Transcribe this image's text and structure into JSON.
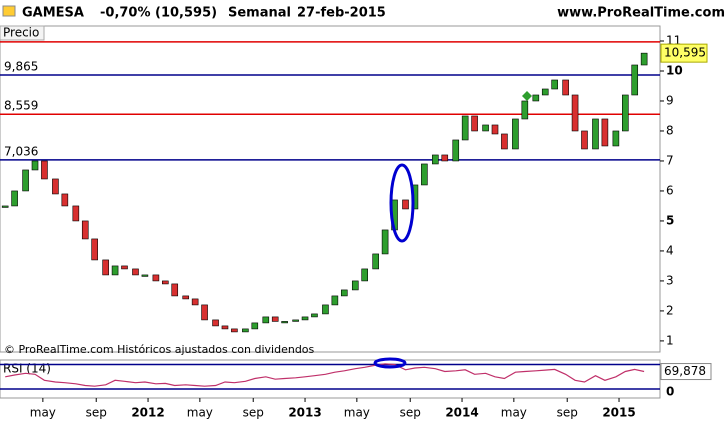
{
  "chart_data": {
    "type": "stock",
    "symbol": "GAMESA",
    "change": "-0,70% (10,595)",
    "period": "Semanal",
    "date": "27-feb-2015",
    "site": "www.ProRealTime.com",
    "panel_label": "Precio",
    "footnote": "© ProRealTime.com Históricos ajustados con dividendos",
    "x": [
      2011.09,
      2011.15,
      2011.22,
      2011.28,
      2011.34,
      2011.41,
      2011.47,
      2011.54,
      2011.6,
      2011.66,
      2011.73,
      2011.79,
      2011.85,
      2011.92,
      2011.98,
      2012.05,
      2012.11,
      2012.17,
      2012.24,
      2012.3,
      2012.36,
      2012.43,
      2012.49,
      2012.55,
      2012.62,
      2012.68,
      2012.75,
      2012.81,
      2012.87,
      2012.94,
      2013.0,
      2013.06,
      2013.13,
      2013.19,
      2013.25,
      2013.32,
      2013.38,
      2013.45,
      2013.51,
      2013.57,
      2013.64,
      2013.7,
      2013.76,
      2013.83,
      2013.89,
      2013.96,
      2014.02,
      2014.08,
      2014.15,
      2014.21,
      2014.27,
      2014.34,
      2014.4,
      2014.47,
      2014.53,
      2014.59,
      2014.66,
      2014.72,
      2014.78,
      2014.85,
      2014.91,
      2014.98,
      2015.04,
      2015.1,
      2015.16
    ],
    "series": [
      {
        "name": "Precio",
        "up_color": "#2e9e2e",
        "down_color": "#d83030",
        "values": [
          5.5,
          6.0,
          6.7,
          7.0,
          6.4,
          5.9,
          5.5,
          5.0,
          4.4,
          3.7,
          3.2,
          3.5,
          3.4,
          3.2,
          3.2,
          3.0,
          2.9,
          2.5,
          2.4,
          2.2,
          1.7,
          1.5,
          1.4,
          1.3,
          1.4,
          1.6,
          1.8,
          1.65,
          1.65,
          1.7,
          1.8,
          1.9,
          2.2,
          2.5,
          2.7,
          3.0,
          3.4,
          3.9,
          4.7,
          5.7,
          5.4,
          6.2,
          6.9,
          7.2,
          7.0,
          7.7,
          8.5,
          8.0,
          8.2,
          7.9,
          7.4,
          8.4,
          9.0,
          9.2,
          9.4,
          9.7,
          9.2,
          8.0,
          7.4,
          8.4,
          7.5,
          8.0,
          9.2,
          10.2,
          10.595
        ],
        "last_label": "10,595"
      }
    ],
    "levels": [
      {
        "value": 10.97,
        "color": "#e00000"
      },
      {
        "value": 9.865,
        "label": "9,865",
        "color": "#00008b"
      },
      {
        "value": 8.559,
        "label": "8,559",
        "color": "#e00000"
      },
      {
        "value": 7.036,
        "label": "7,036",
        "color": "#00008b"
      }
    ],
    "xlim": [
      2011.057,
      2015.261
    ],
    "xticks": [
      {
        "value": 2011.33,
        "label": "may"
      },
      {
        "value": 2011.67,
        "label": "sep"
      },
      2012,
      {
        "value": 2012.33,
        "label": "may"
      },
      {
        "value": 2012.67,
        "label": "sep"
      },
      2013,
      {
        "value": 2013.33,
        "label": "may"
      },
      {
        "value": 2013.67,
        "label": "sep"
      },
      2014,
      {
        "value": 2014.33,
        "label": "may"
      },
      {
        "value": 2014.67,
        "label": "sep"
      },
      2015
    ],
    "ylim": [
      0.63,
      11.1
    ],
    "yticks": [
      1,
      2,
      3,
      4,
      5,
      6,
      7,
      8,
      9,
      10,
      11
    ],
    "rsi": {
      "name": "RSI (14)",
      "color": "#c0306a",
      "ylim": [
        0,
        100
      ],
      "yticks": [
        0
      ],
      "levels": [
        90,
        20
      ],
      "level_color": "#00008b",
      "values": [
        55,
        60,
        65,
        62,
        45,
        40,
        38,
        35,
        30,
        28,
        32,
        45,
        42,
        38,
        40,
        35,
        36,
        30,
        32,
        30,
        28,
        30,
        40,
        38,
        42,
        50,
        55,
        48,
        50,
        52,
        55,
        58,
        62,
        68,
        72,
        78,
        82,
        88,
        92,
        90,
        75,
        80,
        82,
        78,
        70,
        72,
        75,
        62,
        65,
        55,
        50,
        68,
        70,
        72,
        74,
        76,
        62,
        45,
        40,
        58,
        45,
        55,
        70,
        76,
        69.878
      ],
      "last_label": "69,878"
    }
  }
}
